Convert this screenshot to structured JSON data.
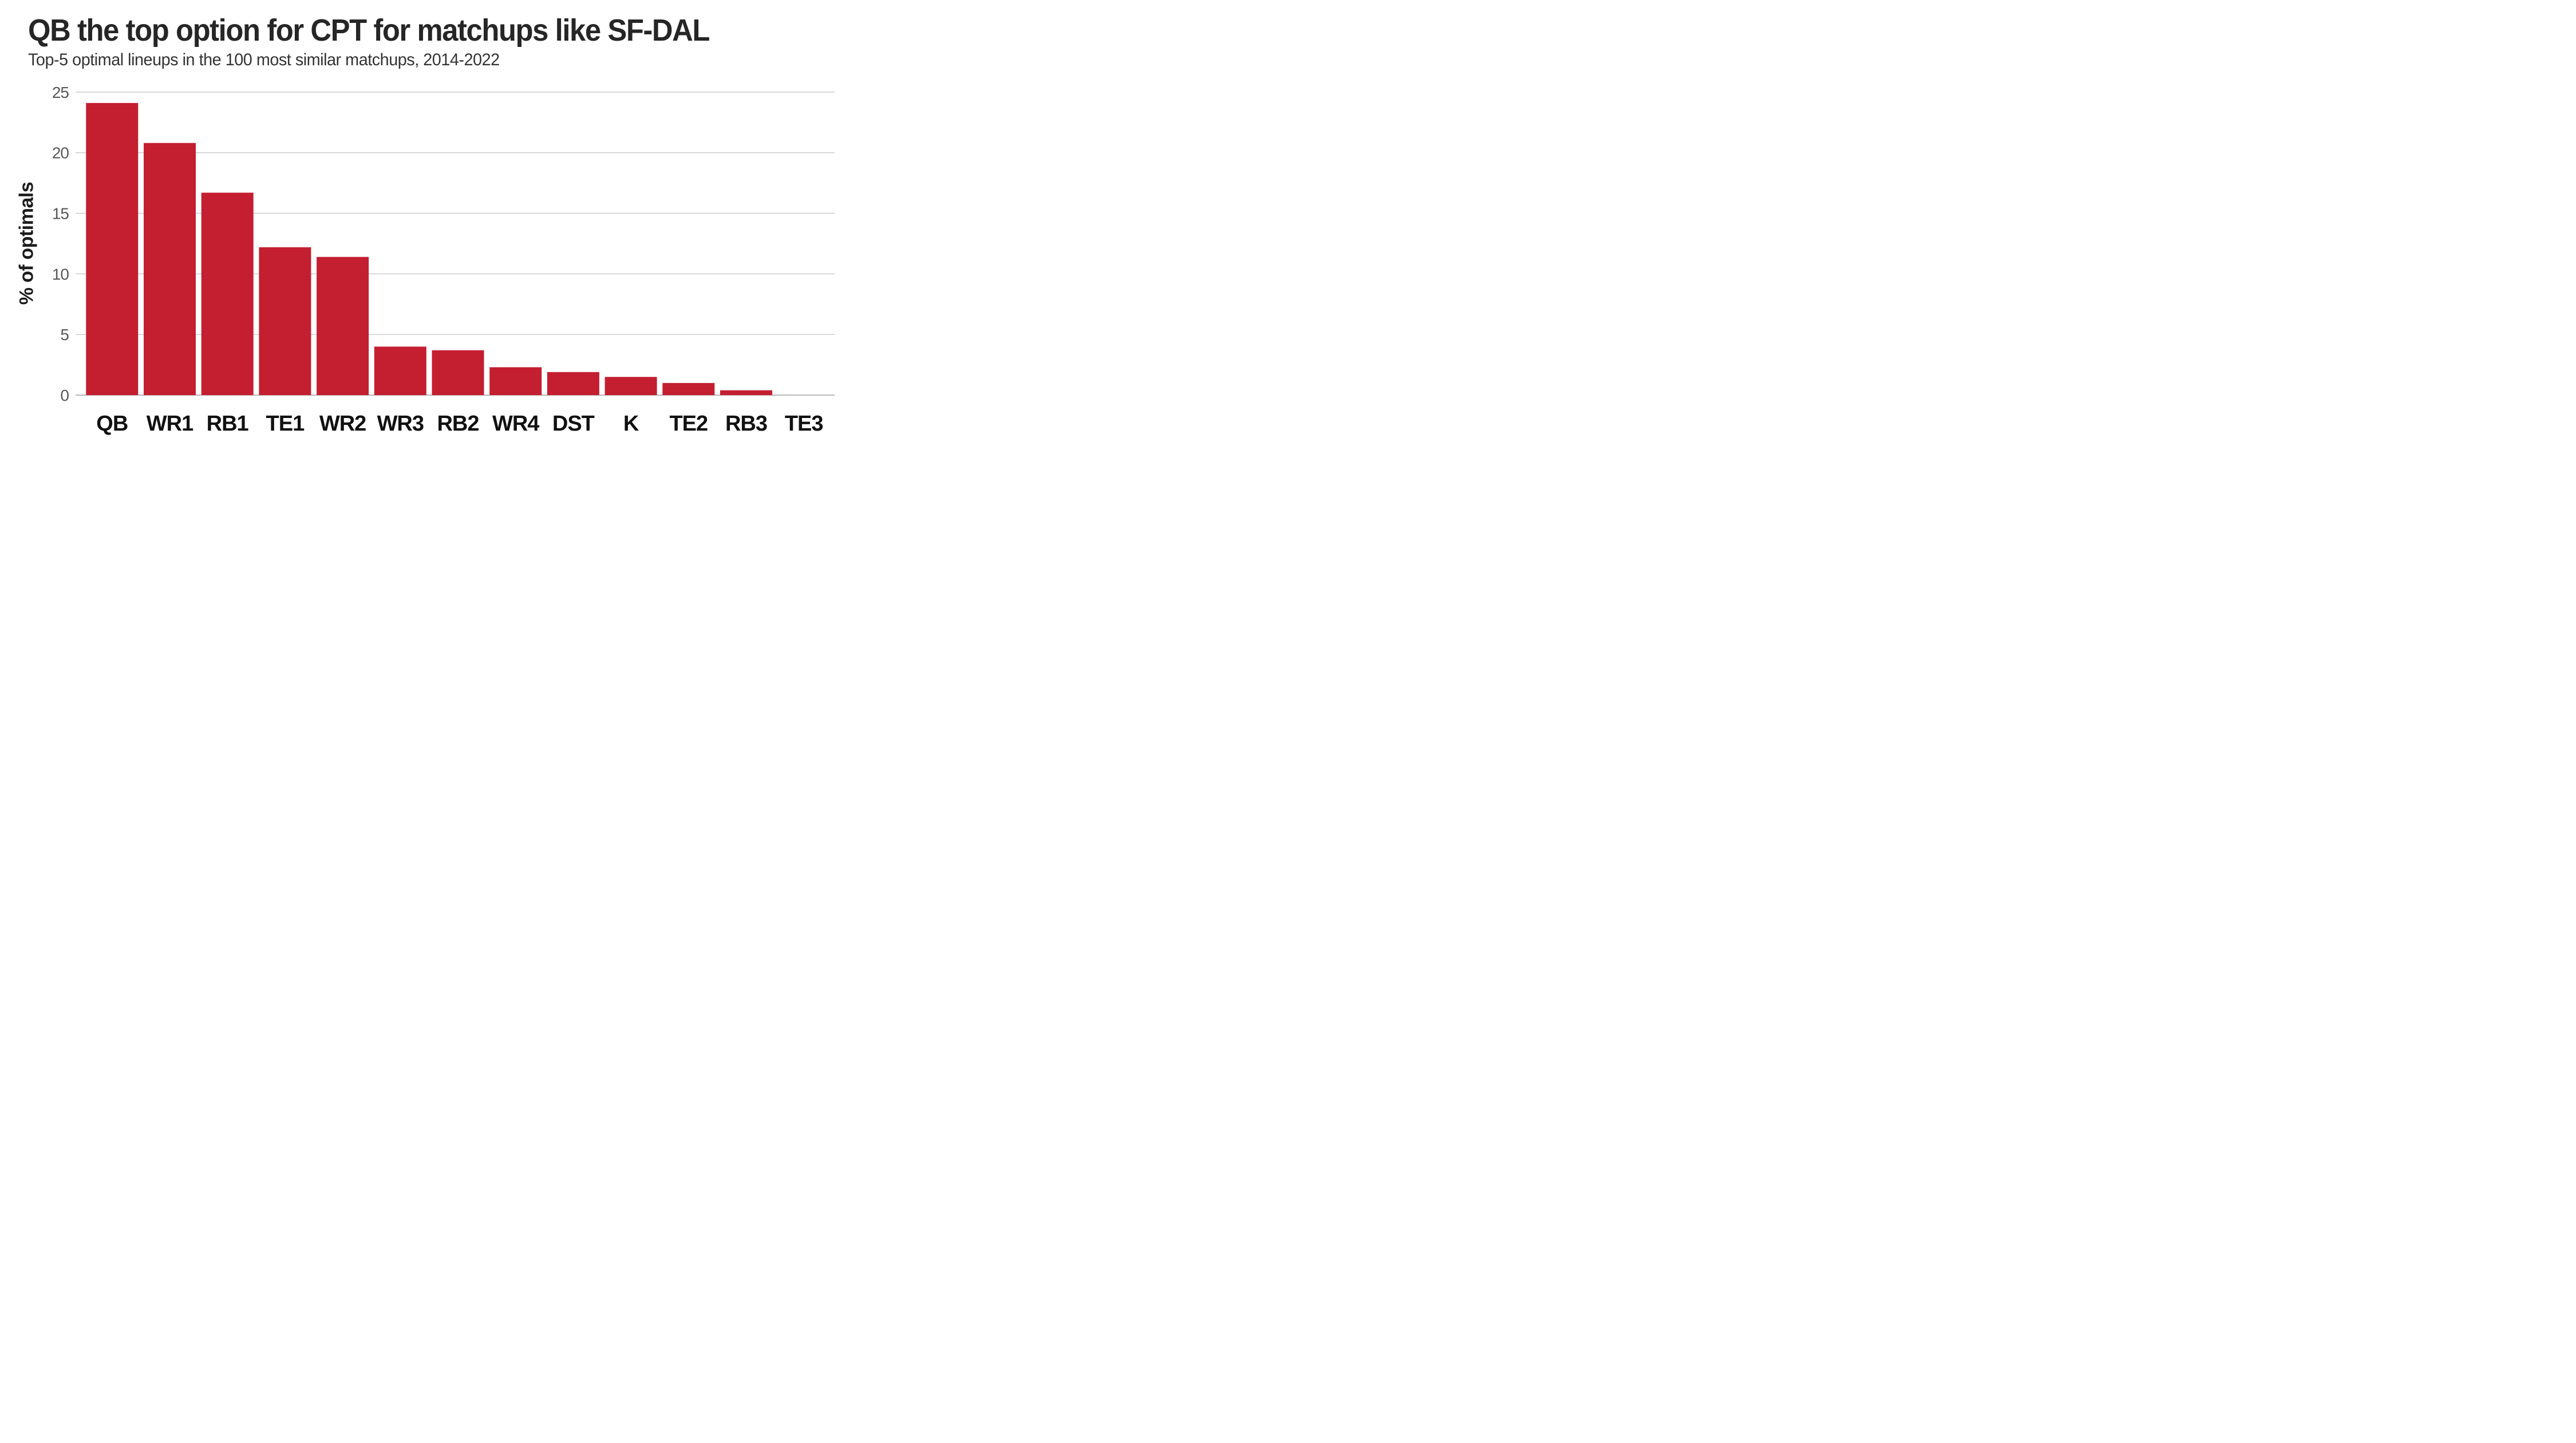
{
  "header": {
    "title": "QB the top option for CPT for matchups like SF-DAL",
    "subtitle": "Top-5 optimal lineups in the 100 most similar matchups, 2014-2022"
  },
  "chart_data": {
    "type": "bar",
    "title": "QB the top option for CPT for matchups like SF-DAL",
    "subtitle": "Top-5 optimal lineups in the 100 most similar matchups, 2014-2022",
    "categories": [
      "QB",
      "WR1",
      "RB1",
      "TE1",
      "WR2",
      "WR3",
      "RB2",
      "WR4",
      "DST",
      "K",
      "TE2",
      "RB3",
      "TE3"
    ],
    "values": [
      24.1,
      20.8,
      16.7,
      12.2,
      11.4,
      4.0,
      3.7,
      2.3,
      1.9,
      1.5,
      1.0,
      0.4,
      0
    ],
    "xlabel": "",
    "ylabel": "% of optimals",
    "ylim": [
      0,
      25
    ],
    "yticks": [
      0,
      5,
      10,
      15,
      20,
      25
    ],
    "grid": true,
    "legend_position": "none",
    "colors": {
      "bar": "#c41e31",
      "title": "#262626",
      "subtitle": "#333333",
      "y_tick_label": "#58585a",
      "x_category_label": "#111111",
      "gridline": "#c9c9c9",
      "baseline": "#bdbdbd",
      "background": "#ffffff"
    }
  }
}
